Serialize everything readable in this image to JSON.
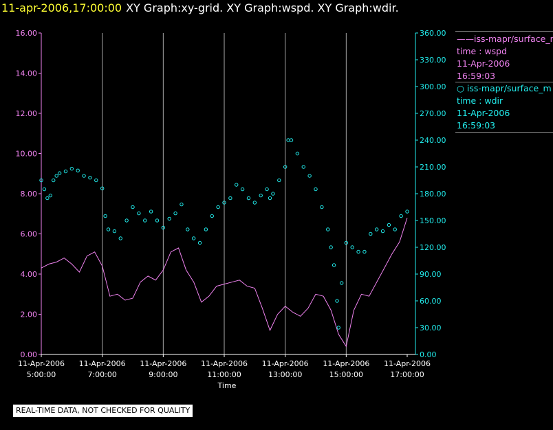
{
  "header": {
    "time": "11-apr-2006,17:00:00",
    "title": "XY Graph:xy-grid.  XY Graph:wspd.  XY Graph:wdir."
  },
  "legend": [
    {
      "marker": "——",
      "line1": "iss-mapr/surface_m",
      "line2": "time : wspd",
      "line3": "11-Apr-2006",
      "line4": "16:59:03"
    },
    {
      "marker": "○",
      "line1": "iss-mapr/surface_m",
      "line2": "time : wdir",
      "line3": "11-Apr-2006",
      "line4": "16:59:03"
    }
  ],
  "disclaimer": "REAL-TIME DATA, NOT CHECKED FOR QUALITY",
  "colors": {
    "wspd": "#ee82ee",
    "wdir": "#22eeee",
    "grid": "#aaaaaa",
    "axis_left": "#ee82ee",
    "axis_right": "#22eeee",
    "axis_x": "#ffffff"
  },
  "chart_data": {
    "type": "line",
    "xlabel": "Time",
    "x_range_hours": [
      5.0,
      17.0
    ],
    "x_ticks": [
      {
        "hour": 5,
        "date": "11-Apr-2006",
        "time": "5:00:00"
      },
      {
        "hour": 7,
        "date": "11-Apr-2006",
        "time": "7:00:00"
      },
      {
        "hour": 9,
        "date": "11-Apr-2006",
        "time": "9:00:00"
      },
      {
        "hour": 11,
        "date": "11-Apr-2006",
        "time": "11:00:00"
      },
      {
        "hour": 13,
        "date": "11-Apr-2006",
        "time": "13:00:00"
      },
      {
        "hour": 15,
        "date": "11-Apr-2006",
        "time": "15:00:00"
      },
      {
        "hour": 17,
        "date": "11-Apr-2006",
        "time": "17:00:00"
      }
    ],
    "y_left": {
      "min": 0,
      "max": 16,
      "ticks": [
        "0.00",
        "2.00",
        "4.00",
        "6.00",
        "8.00",
        "10.00",
        "12.00",
        "14.00",
        "16.00"
      ]
    },
    "y_right": {
      "min": 0,
      "max": 360,
      "ticks": [
        "0.00",
        "30.00",
        "60.00",
        "90.00",
        "120.00",
        "150.00",
        "180.00",
        "210.00",
        "240.00",
        "270.00",
        "300.00",
        "330.00",
        "360.00"
      ]
    },
    "grid": "vertical lines at time ticks",
    "series": [
      {
        "axis": "left",
        "style": "line",
        "points": [
          [
            5.0,
            4.3
          ],
          [
            5.25,
            4.5
          ],
          [
            5.5,
            4.6
          ],
          [
            5.75,
            4.8
          ],
          [
            6.0,
            4.5
          ],
          [
            6.25,
            4.1
          ],
          [
            6.5,
            4.9
          ],
          [
            6.75,
            5.1
          ],
          [
            7.0,
            4.4
          ],
          [
            7.25,
            2.9
          ],
          [
            7.5,
            3.0
          ],
          [
            7.75,
            2.7
          ],
          [
            8.0,
            2.8
          ],
          [
            8.25,
            3.6
          ],
          [
            8.5,
            3.9
          ],
          [
            8.75,
            3.7
          ],
          [
            9.0,
            4.2
          ],
          [
            9.25,
            5.1
          ],
          [
            9.5,
            5.3
          ],
          [
            9.75,
            4.2
          ],
          [
            10.0,
            3.6
          ],
          [
            10.25,
            2.6
          ],
          [
            10.5,
            2.9
          ],
          [
            10.75,
            3.4
          ],
          [
            11.0,
            3.5
          ],
          [
            11.25,
            3.6
          ],
          [
            11.5,
            3.7
          ],
          [
            11.75,
            3.4
          ],
          [
            12.0,
            3.3
          ],
          [
            12.25,
            2.3
          ],
          [
            12.5,
            1.2
          ],
          [
            12.75,
            2.0
          ],
          [
            13.0,
            2.4
          ],
          [
            13.25,
            2.1
          ],
          [
            13.5,
            1.9
          ],
          [
            13.75,
            2.3
          ],
          [
            14.0,
            3.0
          ],
          [
            14.25,
            2.9
          ],
          [
            14.5,
            2.2
          ],
          [
            14.75,
            1.0
          ],
          [
            15.0,
            0.4
          ],
          [
            15.25,
            2.2
          ],
          [
            15.5,
            3.0
          ],
          [
            15.75,
            2.9
          ],
          [
            16.0,
            3.6
          ],
          [
            16.25,
            4.3
          ],
          [
            16.5,
            5.0
          ],
          [
            16.75,
            5.6
          ],
          [
            17.0,
            6.8
          ]
        ]
      },
      {
        "axis": "right",
        "style": "scatter",
        "points": [
          [
            5.0,
            195
          ],
          [
            5.1,
            185
          ],
          [
            5.2,
            175
          ],
          [
            5.3,
            178
          ],
          [
            5.4,
            195
          ],
          [
            5.5,
            200
          ],
          [
            5.6,
            203
          ],
          [
            5.8,
            205
          ],
          [
            6.0,
            208
          ],
          [
            6.2,
            206
          ],
          [
            6.4,
            200
          ],
          [
            6.6,
            198
          ],
          [
            6.8,
            195
          ],
          [
            7.0,
            186
          ],
          [
            7.1,
            155
          ],
          [
            7.2,
            140
          ],
          [
            7.4,
            138
          ],
          [
            7.6,
            130
          ],
          [
            7.8,
            150
          ],
          [
            8.0,
            165
          ],
          [
            8.2,
            158
          ],
          [
            8.4,
            150
          ],
          [
            8.6,
            160
          ],
          [
            8.8,
            150
          ],
          [
            9.0,
            142
          ],
          [
            9.2,
            152
          ],
          [
            9.4,
            158
          ],
          [
            9.6,
            168
          ],
          [
            9.8,
            140
          ],
          [
            10.0,
            130
          ],
          [
            10.2,
            125
          ],
          [
            10.4,
            140
          ],
          [
            10.6,
            155
          ],
          [
            10.8,
            165
          ],
          [
            11.0,
            170
          ],
          [
            11.2,
            175
          ],
          [
            11.4,
            190
          ],
          [
            11.6,
            185
          ],
          [
            11.8,
            175
          ],
          [
            12.0,
            170
          ],
          [
            12.2,
            178
          ],
          [
            12.4,
            185
          ],
          [
            12.5,
            175
          ],
          [
            12.6,
            180
          ],
          [
            12.8,
            195
          ],
          [
            13.0,
            210
          ],
          [
            13.1,
            240
          ],
          [
            13.2,
            240
          ],
          [
            13.4,
            225
          ],
          [
            13.6,
            210
          ],
          [
            13.8,
            200
          ],
          [
            14.0,
            185
          ],
          [
            14.2,
            165
          ],
          [
            14.4,
            140
          ],
          [
            14.5,
            120
          ],
          [
            14.6,
            100
          ],
          [
            14.7,
            60
          ],
          [
            14.75,
            30
          ],
          [
            14.85,
            80
          ],
          [
            15.0,
            125
          ],
          [
            15.2,
            120
          ],
          [
            15.4,
            115
          ],
          [
            15.6,
            115
          ],
          [
            15.8,
            135
          ],
          [
            16.0,
            140
          ],
          [
            16.2,
            138
          ],
          [
            16.4,
            145
          ],
          [
            16.6,
            140
          ],
          [
            16.8,
            155
          ],
          [
            17.0,
            160
          ]
        ]
      }
    ]
  }
}
